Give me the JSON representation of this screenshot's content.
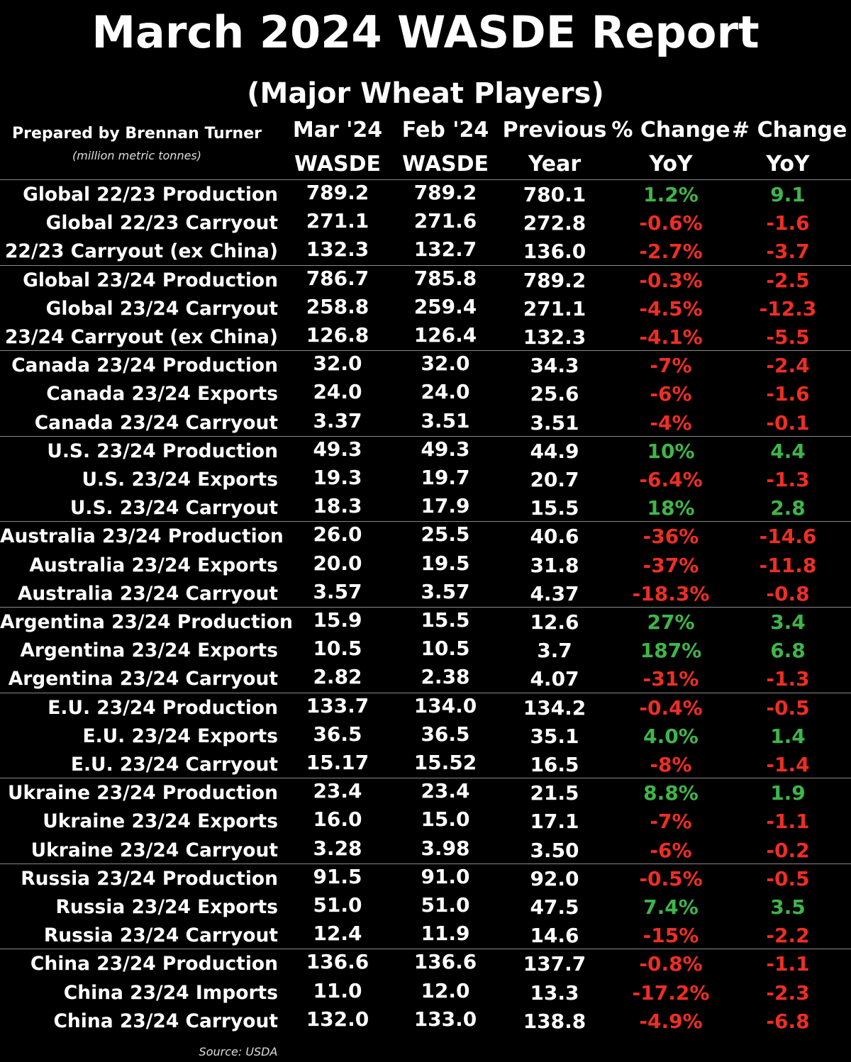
{
  "title": "March 2024 WASDE Report",
  "subtitle": "(Major Wheat Players)",
  "prepared_by": "Prepared by Brennan Turner",
  "units": "(million metric tonnes)",
  "source": "Source: USDA",
  "colors": {
    "positive": "#3fb54a",
    "negative": "#ee2e24",
    "background": "#000000"
  },
  "chart_data": {
    "type": "table",
    "columns": [
      {
        "line1": "Mar '24",
        "line2": "WASDE"
      },
      {
        "line1": "Feb '24",
        "line2": "WASDE"
      },
      {
        "line1": "Previous",
        "line2": "Year"
      },
      {
        "line1": "% Change",
        "line2": "YoY"
      },
      {
        "line1": "# Change",
        "line2": "YoY"
      }
    ],
    "groups": [
      {
        "rows": [
          {
            "label": "Global 22/23 Production",
            "mar": "789.2",
            "feb": "789.2",
            "prev": "780.1",
            "pct": "1.2%",
            "num": "9.1",
            "sign": "pos"
          },
          {
            "label": "Global 22/23 Carryout",
            "mar": "271.1",
            "feb": "271.6",
            "prev": "272.8",
            "pct": "-0.6%",
            "num": "-1.6",
            "sign": "neg"
          },
          {
            "label": "22/23 Carryout (ex China)",
            "mar": "132.3",
            "feb": "132.7",
            "prev": "136.0",
            "pct": "-2.7%",
            "num": "-3.7",
            "sign": "neg"
          }
        ]
      },
      {
        "rows": [
          {
            "label": "Global 23/24 Production",
            "mar": "786.7",
            "feb": "785.8",
            "prev": "789.2",
            "pct": "-0.3%",
            "num": "-2.5",
            "sign": "neg"
          },
          {
            "label": "Global 23/24 Carryout",
            "mar": "258.8",
            "feb": "259.4",
            "prev": "271.1",
            "pct": "-4.5%",
            "num": "-12.3",
            "sign": "neg"
          },
          {
            "label": "23/24 Carryout (ex China)",
            "mar": "126.8",
            "feb": "126.4",
            "prev": "132.3",
            "pct": "-4.1%",
            "num": "-5.5",
            "sign": "neg"
          }
        ]
      },
      {
        "rows": [
          {
            "label": "Canada 23/24 Production",
            "mar": "32.0",
            "feb": "32.0",
            "prev": "34.3",
            "pct": "-7%",
            "num": "-2.4",
            "sign": "neg"
          },
          {
            "label": "Canada 23/24 Exports",
            "mar": "24.0",
            "feb": "24.0",
            "prev": "25.6",
            "pct": "-6%",
            "num": "-1.6",
            "sign": "neg"
          },
          {
            "label": "Canada 23/24 Carryout",
            "mar": "3.37",
            "feb": "3.51",
            "prev": "3.51",
            "pct": "-4%",
            "num": "-0.1",
            "sign": "neg"
          }
        ]
      },
      {
        "rows": [
          {
            "label": "U.S. 23/24 Production",
            "mar": "49.3",
            "feb": "49.3",
            "prev": "44.9",
            "pct": "10%",
            "num": "4.4",
            "sign": "pos"
          },
          {
            "label": "U.S. 23/24 Exports",
            "mar": "19.3",
            "feb": "19.7",
            "prev": "20.7",
            "pct": "-6.4%",
            "num": "-1.3",
            "sign": "neg"
          },
          {
            "label": "U.S. 23/24 Carryout",
            "mar": "18.3",
            "feb": "17.9",
            "prev": "15.5",
            "pct": "18%",
            "num": "2.8",
            "sign": "pos"
          }
        ]
      },
      {
        "rows": [
          {
            "label": "Australia 23/24 Production",
            "mar": "26.0",
            "feb": "25.5",
            "prev": "40.6",
            "pct": "-36%",
            "num": "-14.6",
            "sign": "neg"
          },
          {
            "label": "Australia 23/24 Exports",
            "mar": "20.0",
            "feb": "19.5",
            "prev": "31.8",
            "pct": "-37%",
            "num": "-11.8",
            "sign": "neg"
          },
          {
            "label": "Australia 23/24 Carryout",
            "mar": "3.57",
            "feb": "3.57",
            "prev": "4.37",
            "pct": "-18.3%",
            "num": "-0.8",
            "sign": "neg"
          }
        ]
      },
      {
        "rows": [
          {
            "label": "Argentina 23/24 Production",
            "mar": "15.9",
            "feb": "15.5",
            "prev": "12.6",
            "pct": "27%",
            "num": "3.4",
            "sign": "pos"
          },
          {
            "label": "Argentina 23/24 Exports",
            "mar": "10.5",
            "feb": "10.5",
            "prev": "3.7",
            "pct": "187%",
            "num": "6.8",
            "sign": "pos"
          },
          {
            "label": "Argentina 23/24 Carryout",
            "mar": "2.82",
            "feb": "2.38",
            "prev": "4.07",
            "pct": "-31%",
            "num": "-1.3",
            "sign": "neg"
          }
        ]
      },
      {
        "rows": [
          {
            "label": "E.U. 23/24 Production",
            "mar": "133.7",
            "feb": "134.0",
            "prev": "134.2",
            "pct": "-0.4%",
            "num": "-0.5",
            "sign": "neg"
          },
          {
            "label": "E.U. 23/24 Exports",
            "mar": "36.5",
            "feb": "36.5",
            "prev": "35.1",
            "pct": "4.0%",
            "num": "1.4",
            "sign": "pos"
          },
          {
            "label": "E.U. 23/24 Carryout",
            "mar": "15.17",
            "feb": "15.52",
            "prev": "16.5",
            "pct": "-8%",
            "num": "-1.4",
            "sign": "neg"
          }
        ]
      },
      {
        "rows": [
          {
            "label": "Ukraine 23/24 Production",
            "mar": "23.4",
            "feb": "23.4",
            "prev": "21.5",
            "pct": "8.8%",
            "num": "1.9",
            "sign": "pos"
          },
          {
            "label": "Ukraine 23/24 Exports",
            "mar": "16.0",
            "feb": "15.0",
            "prev": "17.1",
            "pct": "-7%",
            "num": "-1.1",
            "sign": "neg"
          },
          {
            "label": "Ukraine 23/24 Carryout",
            "mar": "3.28",
            "feb": "3.98",
            "prev": "3.50",
            "pct": "-6%",
            "num": "-0.2",
            "sign": "neg"
          }
        ]
      },
      {
        "rows": [
          {
            "label": "Russia 23/24 Production",
            "mar": "91.5",
            "feb": "91.0",
            "prev": "92.0",
            "pct": "-0.5%",
            "num": "-0.5",
            "sign": "neg"
          },
          {
            "label": "Russia 23/24 Exports",
            "mar": "51.0",
            "feb": "51.0",
            "prev": "47.5",
            "pct": "7.4%",
            "num": "3.5",
            "sign": "pos"
          },
          {
            "label": "Russia 23/24 Carryout",
            "mar": "12.4",
            "feb": "11.9",
            "prev": "14.6",
            "pct": "-15%",
            "num": "-2.2",
            "sign": "neg"
          }
        ]
      },
      {
        "rows": [
          {
            "label": "China 23/24 Production",
            "mar": "136.6",
            "feb": "136.6",
            "prev": "137.7",
            "pct": "-0.8%",
            "num": "-1.1",
            "sign": "neg"
          },
          {
            "label": "China 23/24 Imports",
            "mar": "11.0",
            "feb": "12.0",
            "prev": "13.3",
            "pct": "-17.2%",
            "num": "-2.3",
            "sign": "neg"
          },
          {
            "label": "China 23/24 Carryout",
            "mar": "132.0",
            "feb": "133.0",
            "prev": "138.8",
            "pct": "-4.9%",
            "num": "-6.8",
            "sign": "neg"
          }
        ]
      }
    ]
  }
}
